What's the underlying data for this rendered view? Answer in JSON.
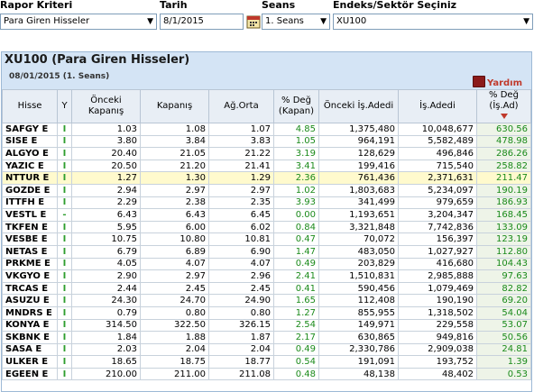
{
  "filters": {
    "report_label": "Rapor Kriteri",
    "report_value": "Para Giren Hisseler",
    "date_label": "Tarih",
    "date_value": "8/1/2015",
    "session_label": "Seans",
    "session_value": "1. Seans",
    "index_label": "Endeks/Sektör Seçiniz",
    "index_value": "XU100"
  },
  "panel": {
    "title": "XU100 (Para Giren Hisseler)",
    "subtitle": "08/01/2015 (1. Seans)",
    "help_label": "Yardım"
  },
  "columns": [
    "Hisse",
    "Y",
    "Önceki Kapanış",
    "Kapanış",
    "Ağ.Orta",
    "% Değ (Kapan)",
    "Önceki İş.Adedi",
    "İş.Adedi",
    "% Değ (İş.Ad)"
  ],
  "rows": [
    {
      "sym": "SAFGY E",
      "y": "I",
      "prev": "1.03",
      "close": "1.08",
      "avg": "1.07",
      "chg": "4.85",
      "prev_vol": "1,375,480",
      "vol": "10,048,677",
      "vol_chg": "630.56"
    },
    {
      "sym": "SISE E",
      "y": "I",
      "prev": "3.80",
      "close": "3.84",
      "avg": "3.83",
      "chg": "1.05",
      "prev_vol": "964,191",
      "vol": "5,582,489",
      "vol_chg": "478.98"
    },
    {
      "sym": "ALGYO E",
      "y": "I",
      "prev": "20.40",
      "close": "21.05",
      "avg": "21.22",
      "chg": "3.19",
      "prev_vol": "128,629",
      "vol": "496,846",
      "vol_chg": "286.26"
    },
    {
      "sym": "YAZIC E",
      "y": "I",
      "prev": "20.50",
      "close": "21.20",
      "avg": "21.41",
      "chg": "3.41",
      "prev_vol": "199,416",
      "vol": "715,540",
      "vol_chg": "258.82"
    },
    {
      "sym": "NTTUR E",
      "y": "I",
      "prev": "1.27",
      "close": "1.30",
      "avg": "1.29",
      "chg": "2.36",
      "prev_vol": "761,436",
      "vol": "2,371,631",
      "vol_chg": "211.47"
    },
    {
      "sym": "GOZDE E",
      "y": "I",
      "prev": "2.94",
      "close": "2.97",
      "avg": "2.97",
      "chg": "1.02",
      "prev_vol": "1,803,683",
      "vol": "5,234,097",
      "vol_chg": "190.19"
    },
    {
      "sym": "ITTFH E",
      "y": "I",
      "prev": "2.29",
      "close": "2.38",
      "avg": "2.35",
      "chg": "3.93",
      "prev_vol": "341,499",
      "vol": "979,659",
      "vol_chg": "186.93"
    },
    {
      "sym": "VESTL E",
      "y": "-",
      "prev": "6.43",
      "close": "6.43",
      "avg": "6.45",
      "chg": "0.00",
      "prev_vol": "1,193,651",
      "vol": "3,204,347",
      "vol_chg": "168.45"
    },
    {
      "sym": "TKFEN E",
      "y": "I",
      "prev": "5.95",
      "close": "6.00",
      "avg": "6.02",
      "chg": "0.84",
      "prev_vol": "3,321,848",
      "vol": "7,742,836",
      "vol_chg": "133.09"
    },
    {
      "sym": "VESBE E",
      "y": "I",
      "prev": "10.75",
      "close": "10.80",
      "avg": "10.81",
      "chg": "0.47",
      "prev_vol": "70,072",
      "vol": "156,397",
      "vol_chg": "123.19"
    },
    {
      "sym": "NETAS E",
      "y": "I",
      "prev": "6.79",
      "close": "6.89",
      "avg": "6.90",
      "chg": "1.47",
      "prev_vol": "483,050",
      "vol": "1,027,927",
      "vol_chg": "112.80"
    },
    {
      "sym": "PRKME E",
      "y": "I",
      "prev": "4.05",
      "close": "4.07",
      "avg": "4.07",
      "chg": "0.49",
      "prev_vol": "203,829",
      "vol": "416,680",
      "vol_chg": "104.43"
    },
    {
      "sym": "VKGYO E",
      "y": "I",
      "prev": "2.90",
      "close": "2.97",
      "avg": "2.96",
      "chg": "2.41",
      "prev_vol": "1,510,831",
      "vol": "2,985,888",
      "vol_chg": "97.63"
    },
    {
      "sym": "TRCAS E",
      "y": "I",
      "prev": "2.44",
      "close": "2.45",
      "avg": "2.45",
      "chg": "0.41",
      "prev_vol": "590,456",
      "vol": "1,079,469",
      "vol_chg": "82.82"
    },
    {
      "sym": "ASUZU E",
      "y": "I",
      "prev": "24.30",
      "close": "24.70",
      "avg": "24.90",
      "chg": "1.65",
      "prev_vol": "112,408",
      "vol": "190,190",
      "vol_chg": "69.20"
    },
    {
      "sym": "MNDRS E",
      "y": "I",
      "prev": "0.79",
      "close": "0.80",
      "avg": "0.80",
      "chg": "1.27",
      "prev_vol": "855,955",
      "vol": "1,318,502",
      "vol_chg": "54.04"
    },
    {
      "sym": "KONYA E",
      "y": "I",
      "prev": "314.50",
      "close": "322.50",
      "avg": "326.15",
      "chg": "2.54",
      "prev_vol": "149,971",
      "vol": "229,558",
      "vol_chg": "53.07"
    },
    {
      "sym": "SKBNK E",
      "y": "I",
      "prev": "1.84",
      "close": "1.88",
      "avg": "1.87",
      "chg": "2.17",
      "prev_vol": "630,865",
      "vol": "949,816",
      "vol_chg": "50.56"
    },
    {
      "sym": "SASA E",
      "y": "I",
      "prev": "2.03",
      "close": "2.04",
      "avg": "2.04",
      "chg": "0.49",
      "prev_vol": "2,330,786",
      "vol": "2,909,038",
      "vol_chg": "24.81"
    },
    {
      "sym": "ULKER E",
      "y": "I",
      "prev": "18.65",
      "close": "18.75",
      "avg": "18.77",
      "chg": "0.54",
      "prev_vol": "191,091",
      "vol": "193,752",
      "vol_chg": "1.39"
    },
    {
      "sym": "EGEEN E",
      "y": "I",
      "prev": "210.00",
      "close": "211.00",
      "avg": "211.08",
      "chg": "0.48",
      "prev_vol": "48,138",
      "vol": "48,402",
      "vol_chg": "0.53"
    }
  ],
  "colors": {
    "header_bg": "#d4e4f5",
    "highlight_row": "#fffacd",
    "positive": "#1a8a1a",
    "help": "#c0392b"
  }
}
